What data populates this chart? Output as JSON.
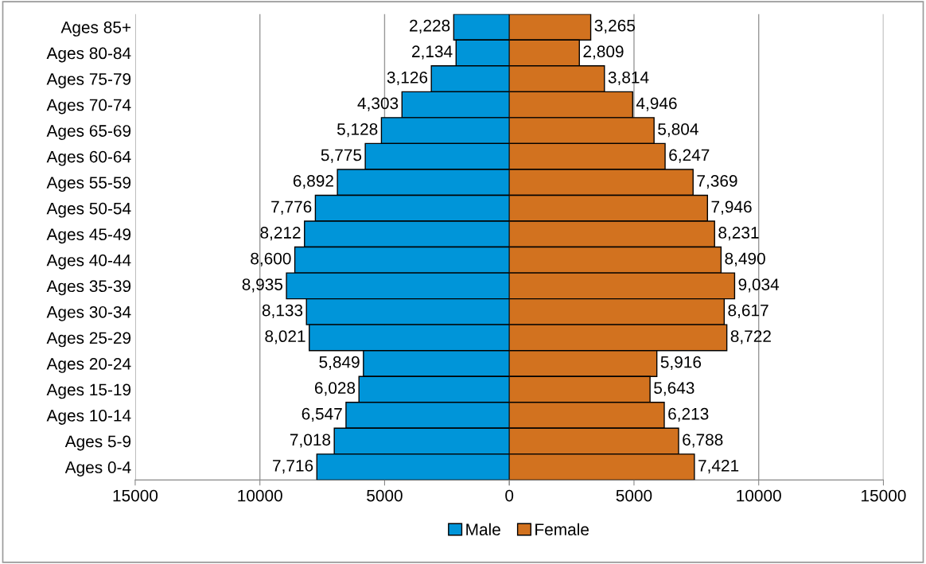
{
  "chart_data": [
    {
      "type": "bar",
      "orientation": "horizontal",
      "categories": [
        "Ages 85+",
        "Ages 80-84",
        "Ages 75-79",
        "Ages 70-74",
        "Ages 65-69",
        "Ages 60-64",
        "Ages 55-59",
        "Ages 50-54",
        "Ages 45-49",
        "Ages 40-44",
        "Ages 35-39",
        "Ages 30-34",
        "Ages 25-29",
        "Ages 20-24",
        "Ages 15-19",
        "Ages 10-14",
        "Ages 5-9",
        "Ages 0-4"
      ],
      "series": [
        {
          "name": "Male",
          "color": "#0095d9",
          "values": [
            2228,
            2134,
            3126,
            4303,
            5128,
            5775,
            6892,
            7776,
            8212,
            8600,
            8935,
            8133,
            8021,
            5849,
            6028,
            6547,
            7018,
            7716
          ],
          "value_labels": [
            "2,228",
            "2,134",
            "3,126",
            "4,303",
            "5,128",
            "5,775",
            "6,892",
            "7,776",
            "8,212",
            "8,600",
            "8,935",
            "8,133",
            "8,021",
            "5,849",
            "6,028",
            "6,547",
            "7,018",
            "7,716"
          ]
        }
      ],
      "xlim": [
        15000,
        0
      ],
      "xticks": [
        15000,
        10000,
        5000,
        0
      ],
      "grid": "x",
      "legend": "bottom right"
    },
    {
      "type": "bar",
      "orientation": "horizontal",
      "tick_labels": "x",
      "categories": [
        null,
        null,
        null,
        null,
        null,
        null,
        null,
        null,
        null,
        null,
        null,
        null,
        null,
        null,
        null,
        null,
        null,
        null
      ],
      "series": [
        {
          "name": "Female",
          "color": "#d2721f",
          "values": [
            3265,
            2809,
            3814,
            4946,
            5804,
            6247,
            7369,
            7946,
            8231,
            8490,
            9034,
            8617,
            8722,
            5916,
            5643,
            6213,
            6788,
            7421
          ],
          "value_labels": [
            "3,265",
            "2,809",
            "3,814",
            "4,946",
            "5,804",
            "6,247",
            "7,369",
            "7,946",
            "8,231",
            "8,490",
            "9,034",
            "8,617",
            "8,722",
            "5,916",
            "5,643",
            "6,213",
            "6,788",
            "7,421"
          ]
        }
      ],
      "xlim": [
        0,
        15000
      ],
      "xticks": [
        {
          "value": 0,
          "label": null
        },
        5000,
        10000,
        15000
      ],
      "grid": "x",
      "legend": "bottom left"
    }
  ]
}
